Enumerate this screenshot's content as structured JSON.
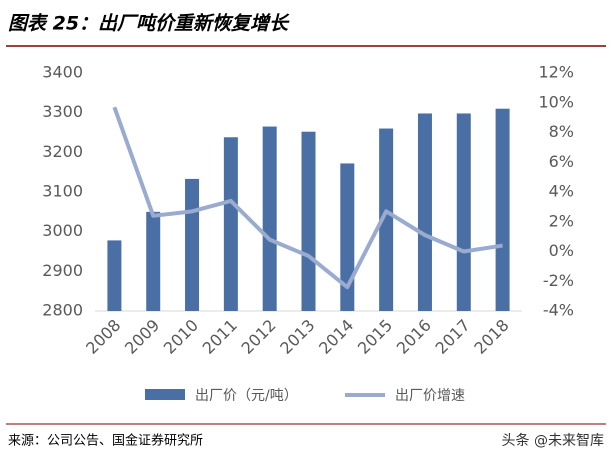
{
  "header": {
    "title": "图表 25：出厂吨价重新恢复增长"
  },
  "chart_data": {
    "type": "bar-line",
    "categories": [
      "2008",
      "2009",
      "2010",
      "2011",
      "2012",
      "2013",
      "2014",
      "2015",
      "2016",
      "2017",
      "2018"
    ],
    "series": [
      {
        "name": "出厂价（元/吨）",
        "type": "bar",
        "color": "#4a6fa5",
        "values": [
          2978,
          3050,
          3133,
          3238,
          3265,
          3252,
          3172,
          3260,
          3298,
          3298,
          3310
        ]
      },
      {
        "name": "出厂价增速",
        "type": "line",
        "axis": "y2",
        "color": "#9aabd0",
        "values": [
          9.7,
          2.4,
          2.7,
          3.4,
          0.8,
          -0.3,
          -2.4,
          2.7,
          1.1,
          0.0,
          0.4
        ]
      }
    ],
    "ylim": [
      2800,
      3400
    ],
    "yticks": [
      2800,
      2900,
      3000,
      3100,
      3200,
      3300,
      3400
    ],
    "y2lim": [
      -4,
      12
    ],
    "y2ticks": [
      {
        "value": -4,
        "label": "-4%"
      },
      {
        "value": -2,
        "label": "-2%"
      },
      {
        "value": 0,
        "label": "0%"
      },
      {
        "value": 2,
        "label": "2%"
      },
      {
        "value": 4,
        "label": "4%"
      },
      {
        "value": 6,
        "label": "6%"
      },
      {
        "value": 8,
        "label": "8%"
      },
      {
        "value": 10,
        "label": "10%"
      },
      {
        "value": 12,
        "label": "12%"
      }
    ],
    "legend": "bottom",
    "grid": false
  },
  "footer": {
    "source": "来源：公司公告、国金证券研究所",
    "watermark": "头条 @未来智库"
  }
}
